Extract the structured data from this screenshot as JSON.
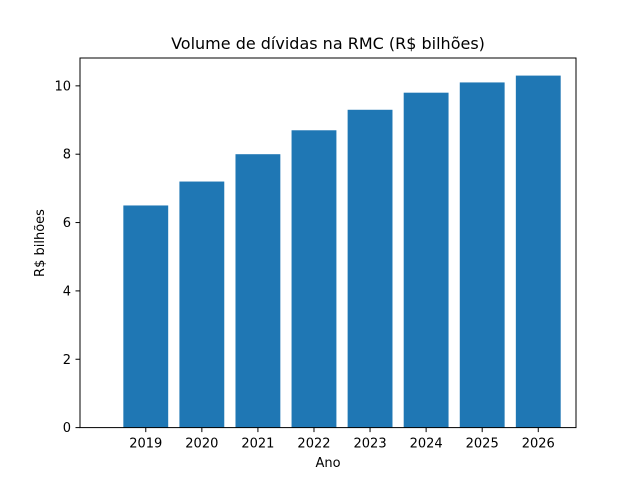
{
  "chart_data": {
    "type": "bar",
    "title": "Volume de dívidas na RMC (R$ bilhões)",
    "xlabel": "Ano",
    "ylabel": "R$ bilhões",
    "categories": [
      "2019",
      "2020",
      "2021",
      "2022",
      "2023",
      "2024",
      "2025",
      "2026"
    ],
    "values": [
      6.5,
      7.2,
      8.0,
      8.7,
      9.3,
      9.8,
      10.1,
      10.3
    ],
    "ylim": [
      0,
      10.815
    ],
    "yticks": [
      0,
      2,
      4,
      6,
      8,
      10
    ],
    "grid": false,
    "legend": "none",
    "bar_color": "#1f77b4"
  }
}
